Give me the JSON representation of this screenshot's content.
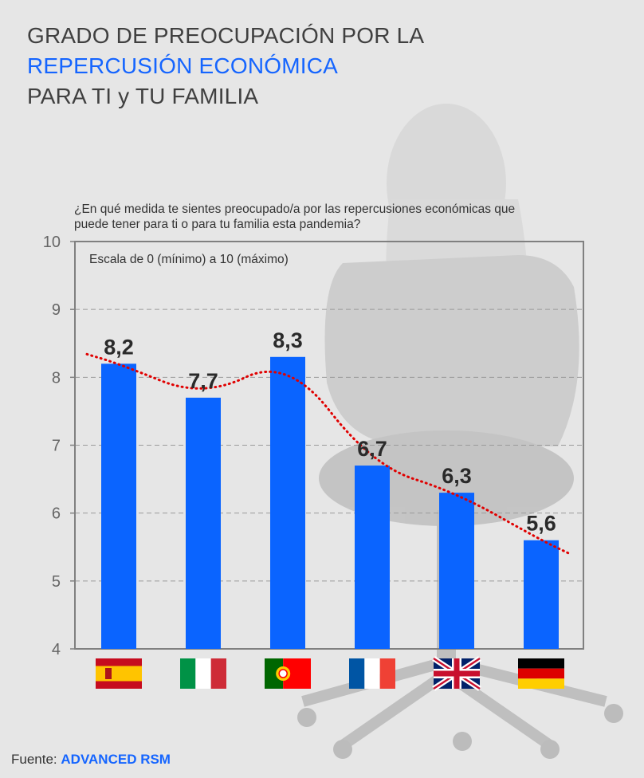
{
  "title": {
    "line1": "GRADO DE PREOCUPACIÓN POR LA",
    "line2": "REPERCUSIÓN ECONÓMICA",
    "line3": "PARA TI y TU FAMILIA"
  },
  "question": "¿En qué medida te sientes preocupado/a por las repercusiones económicas que puede tener para ti o para tu familia esta pandemia?",
  "source": {
    "label": "Fuente:",
    "name": "ADVANCED RSM"
  },
  "colors": {
    "accent": "#1565ff",
    "bar": "#0a64ff",
    "trend": "#e00000"
  },
  "chart_data": {
    "type": "bar",
    "annotation": "Escala de 0 (mínimo) a 10 (máximo)",
    "categories": [
      "España",
      "Italia",
      "Portugal",
      "Francia",
      "Reino Unido",
      "Alemania"
    ],
    "flag_icons": [
      "spain-flag-icon",
      "italy-flag-icon",
      "portugal-flag-icon",
      "france-flag-icon",
      "uk-flag-icon",
      "germany-flag-icon"
    ],
    "values": [
      8.2,
      7.7,
      8.3,
      6.7,
      6.3,
      5.6
    ],
    "value_labels": [
      "8,2",
      "7,7",
      "8,3",
      "6,7",
      "6,3",
      "5,6"
    ],
    "ylim": [
      4,
      10
    ],
    "yticks": [
      "4",
      "5",
      "6",
      "7",
      "8",
      "9",
      "10"
    ],
    "grid": true,
    "trendline": "dotted red polynomial trend"
  }
}
